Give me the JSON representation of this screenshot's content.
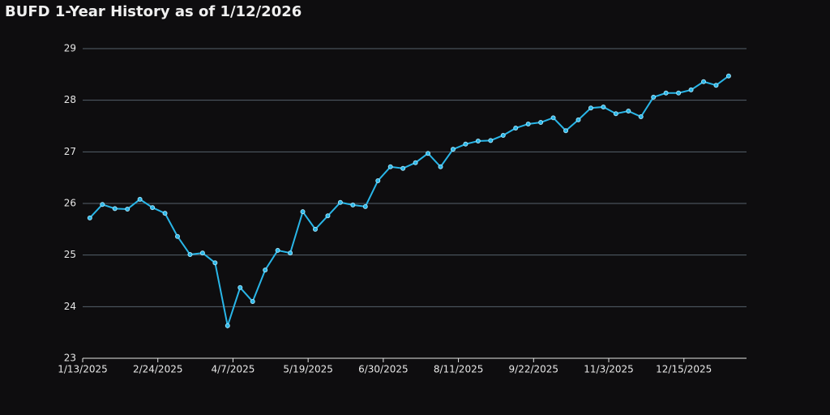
{
  "chart_data": {
    "type": "line",
    "title": "BUFD 1-Year History as of 1/12/2026",
    "x": [
      "1/17/2025",
      "1/24/2025",
      "1/31/2025",
      "2/7/2025",
      "2/14/2025",
      "2/21/2025",
      "2/28/2025",
      "3/7/2025",
      "3/14/2025",
      "3/21/2025",
      "3/28/2025",
      "4/4/2025",
      "4/11/2025",
      "4/18/2025",
      "4/25/2025",
      "5/2/2025",
      "5/9/2025",
      "5/16/2025",
      "5/23/2025",
      "5/30/2025",
      "6/6/2025",
      "6/13/2025",
      "6/20/2025",
      "6/27/2025",
      "7/4/2025",
      "7/11/2025",
      "7/18/2025",
      "7/25/2025",
      "8/1/2025",
      "8/8/2025",
      "8/15/2025",
      "8/22/2025",
      "8/29/2025",
      "9/5/2025",
      "9/12/2025",
      "9/19/2025",
      "9/26/2025",
      "10/3/2025",
      "10/10/2025",
      "10/17/2025",
      "10/24/2025",
      "10/31/2025",
      "11/7/2025",
      "11/14/2025",
      "11/21/2025",
      "11/28/2025",
      "12/5/2025",
      "12/12/2025",
      "12/19/2025",
      "12/26/2025",
      "1/2/2026",
      "1/9/2026"
    ],
    "values": [
      25.72,
      25.98,
      25.9,
      25.89,
      26.08,
      25.92,
      25.81,
      25.36,
      25.01,
      25.04,
      24.85,
      23.63,
      24.37,
      24.1,
      24.71,
      25.09,
      25.04,
      25.84,
      25.5,
      25.76,
      26.02,
      25.97,
      25.94,
      26.44,
      26.71,
      26.68,
      26.79,
      26.97,
      26.71,
      27.05,
      27.15,
      27.21,
      27.22,
      27.32,
      27.46,
      27.54,
      27.57,
      27.66,
      27.41,
      27.62,
      27.85,
      27.87,
      27.74,
      27.79,
      27.68,
      28.06,
      28.14,
      28.14,
      28.2,
      28.36,
      28.29,
      28.47
    ],
    "color": "#29b6e8",
    "xlim": [
      "1/13/2025",
      "1/19/2026"
    ],
    "xticks": [
      "1/13/2025",
      "2/24/2025",
      "4/7/2025",
      "5/19/2025",
      "6/30/2025",
      "8/11/2025",
      "9/22/2025",
      "11/3/2025",
      "12/15/2025"
    ],
    "ylim": [
      23,
      29
    ],
    "yticks": [
      23,
      24,
      25,
      26,
      27,
      28,
      29
    ],
    "grid": true
  }
}
